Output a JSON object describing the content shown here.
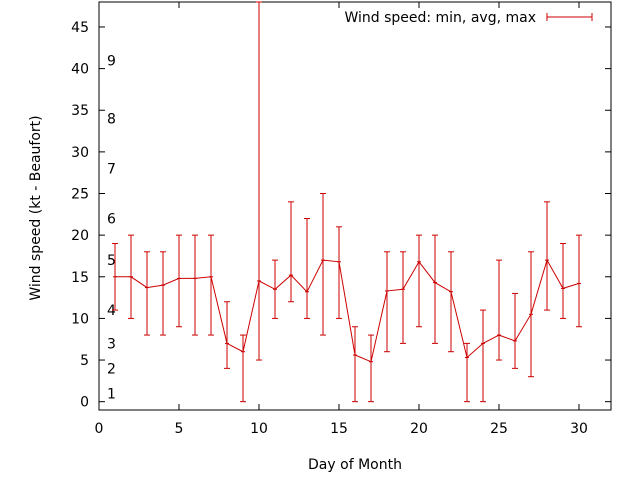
{
  "chart_data": {
    "type": "line",
    "title": "",
    "xlabel": "Day of Month",
    "ylabel": "Wind speed (kt - Beaufort)",
    "xlim": [
      0,
      32
    ],
    "ylim": [
      -1,
      48
    ],
    "xticks": [
      0,
      5,
      10,
      15,
      20,
      25,
      30
    ],
    "yticks": [
      0,
      5,
      10,
      15,
      20,
      25,
      30,
      35,
      40,
      45
    ],
    "grid": false,
    "legend_position": "top-right",
    "beaufort_labels": [
      {
        "label": "1",
        "y": 1
      },
      {
        "label": "2",
        "y": 4
      },
      {
        "label": "3",
        "y": 7
      },
      {
        "label": "4",
        "y": 11
      },
      {
        "label": "5",
        "y": 17
      },
      {
        "label": "6",
        "y": 22
      },
      {
        "label": "7",
        "y": 28
      },
      {
        "label": "8",
        "y": 34
      },
      {
        "label": "9",
        "y": 41
      }
    ],
    "series": [
      {
        "name": "Wind speed: min, avg, max",
        "color": "#cc0000",
        "x": [
          1,
          2,
          3,
          4,
          5,
          6,
          7,
          8,
          9,
          10,
          11,
          12,
          13,
          14,
          15,
          16,
          17,
          18,
          19,
          20,
          21,
          22,
          23,
          24,
          25,
          26,
          27,
          28,
          29,
          30
        ],
        "avg": [
          15,
          15,
          13.7,
          14,
          14.8,
          14.8,
          15,
          7,
          6,
          14.5,
          13.5,
          15.2,
          13.2,
          17,
          16.8,
          5.6,
          4.8,
          13.3,
          13.5,
          16.8,
          14.3,
          13.2,
          5.3,
          7,
          8,
          7.3,
          10.5,
          17,
          13.6,
          14.2
        ],
        "min": [
          11,
          10,
          8,
          8,
          9,
          8,
          8,
          4,
          0,
          5,
          10,
          12,
          10,
          8,
          10,
          0,
          0,
          6,
          7,
          9,
          7,
          6,
          0,
          0,
          5,
          4,
          3,
          11,
          10,
          9
        ],
        "max": [
          19,
          20,
          18,
          18,
          20,
          20,
          20,
          12,
          8,
          48,
          17,
          24,
          22,
          25,
          21,
          9,
          8,
          18,
          18,
          20,
          20,
          18,
          7,
          11,
          17,
          13,
          18,
          24,
          19,
          20
        ]
      }
    ]
  }
}
